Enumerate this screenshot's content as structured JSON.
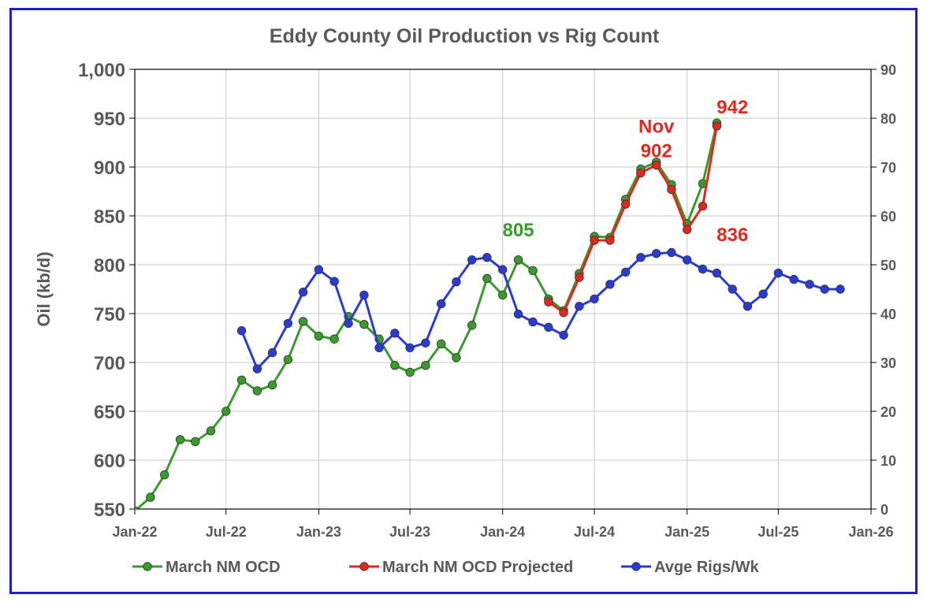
{
  "chart_data": {
    "type": "line",
    "title": "Eddy County Oil Production vs Rig Count",
    "ylabel": "Oil (kb/d)",
    "y2label": "",
    "xlabel": "",
    "ylim": [
      550,
      1000
    ],
    "y2lim": [
      0,
      90
    ],
    "x_ticks": [
      "Jan-22",
      "Jul-22",
      "Jan-23",
      "Jul-23",
      "Jan-24",
      "Jul-24",
      "Jan-25",
      "Jul-25",
      "Jan-26"
    ],
    "y_ticks": [
      "550",
      "600",
      "650",
      "700",
      "750",
      "800",
      "850",
      "900",
      "950",
      "1,000"
    ],
    "y2_ticks": [
      "0",
      "10",
      "20",
      "30",
      "40",
      "50",
      "60",
      "70",
      "80",
      "90"
    ],
    "grid": true,
    "legend_position": "bottom",
    "series": [
      {
        "name": "March  NM OCD",
        "axis": "left",
        "color": "#3a9a2b",
        "x": [
          "2022-01",
          "2022-02",
          "2022-03",
          "2022-04",
          "2022-05",
          "2022-06",
          "2022-07",
          "2022-08",
          "2022-09",
          "2022-10",
          "2022-11",
          "2022-12",
          "2023-01",
          "2023-02",
          "2023-03",
          "2023-04",
          "2023-05",
          "2023-06",
          "2023-07",
          "2023-08",
          "2023-09",
          "2023-10",
          "2023-11",
          "2023-12",
          "2024-01",
          "2024-02",
          "2024-03",
          "2024-04",
          "2024-05",
          "2024-06",
          "2024-07",
          "2024-08",
          "2024-09",
          "2024-10",
          "2024-11",
          "2024-12",
          "2025-01",
          "2025-02",
          "2025-03"
        ],
        "values": [
          548,
          562,
          585,
          621,
          619,
          630,
          650,
          682,
          671,
          677,
          703,
          742,
          727,
          724,
          747,
          739,
          724,
          697,
          690,
          697,
          719,
          705,
          738,
          786,
          769,
          805,
          794,
          765,
          753,
          791,
          829,
          828,
          867,
          898,
          905,
          882,
          842,
          883,
          945
        ]
      },
      {
        "name": "March NM OCD Projected",
        "axis": "left",
        "color": "#e0281f",
        "x": [
          "2024-04",
          "2024-05",
          "2024-06",
          "2024-07",
          "2024-08",
          "2024-09",
          "2024-10",
          "2024-11",
          "2024-12",
          "2025-01",
          "2025-02",
          "2025-03"
        ],
        "values": [
          762,
          751,
          787,
          825,
          825,
          862,
          894,
          902,
          877,
          836,
          860,
          942
        ]
      },
      {
        "name": "Avge Rigs/Wk",
        "axis": "right",
        "color": "#2a3bd4",
        "x": [
          "2022-08",
          "2022-09",
          "2022-10",
          "2022-11",
          "2022-12",
          "2023-01",
          "2023-02",
          "2023-03",
          "2023-04",
          "2023-05",
          "2023-06",
          "2023-07",
          "2023-08",
          "2023-09",
          "2023-10",
          "2023-11",
          "2023-12",
          "2024-01",
          "2024-02",
          "2024-03",
          "2024-04",
          "2024-05",
          "2024-06",
          "2024-07",
          "2024-08",
          "2024-09",
          "2024-10",
          "2024-11",
          "2024-12",
          "2025-01",
          "2025-02",
          "2025-03",
          "2025-04",
          "2025-05",
          "2025-06",
          "2025-07",
          "2025-08",
          "2025-09",
          "2025-10",
          "2025-11"
        ],
        "values": [
          36.5,
          28.7,
          32.0,
          38.0,
          44.4,
          49.0,
          46.6,
          38.0,
          43.8,
          33.0,
          36.0,
          33.0,
          34.0,
          42.0,
          46.5,
          51.0,
          51.5,
          49.0,
          39.9,
          38.3,
          37.2,
          35.6,
          41.5,
          43.0,
          46.0,
          48.5,
          51.5,
          52.3,
          52.5,
          51.0,
          49.1,
          48.3,
          45.0,
          41.5,
          44.0,
          48.3,
          47.0,
          46.0,
          45.0,
          45.0
        ]
      }
    ],
    "annotations": [
      {
        "text": "805",
        "x": "2024-02",
        "y": 829,
        "color": "#3a9a2b"
      },
      {
        "text": "Nov",
        "x": "2024-11",
        "y": 935,
        "color": "#e0281f"
      },
      {
        "text": "902",
        "x": "2024-11",
        "y": 910,
        "color": "#e0281f"
      },
      {
        "text": "942",
        "x": "2025-04",
        "y": 955,
        "color": "#e0281f"
      },
      {
        "text": "836",
        "x": "2025-04",
        "y": 824,
        "color": "#e0281f"
      }
    ]
  }
}
